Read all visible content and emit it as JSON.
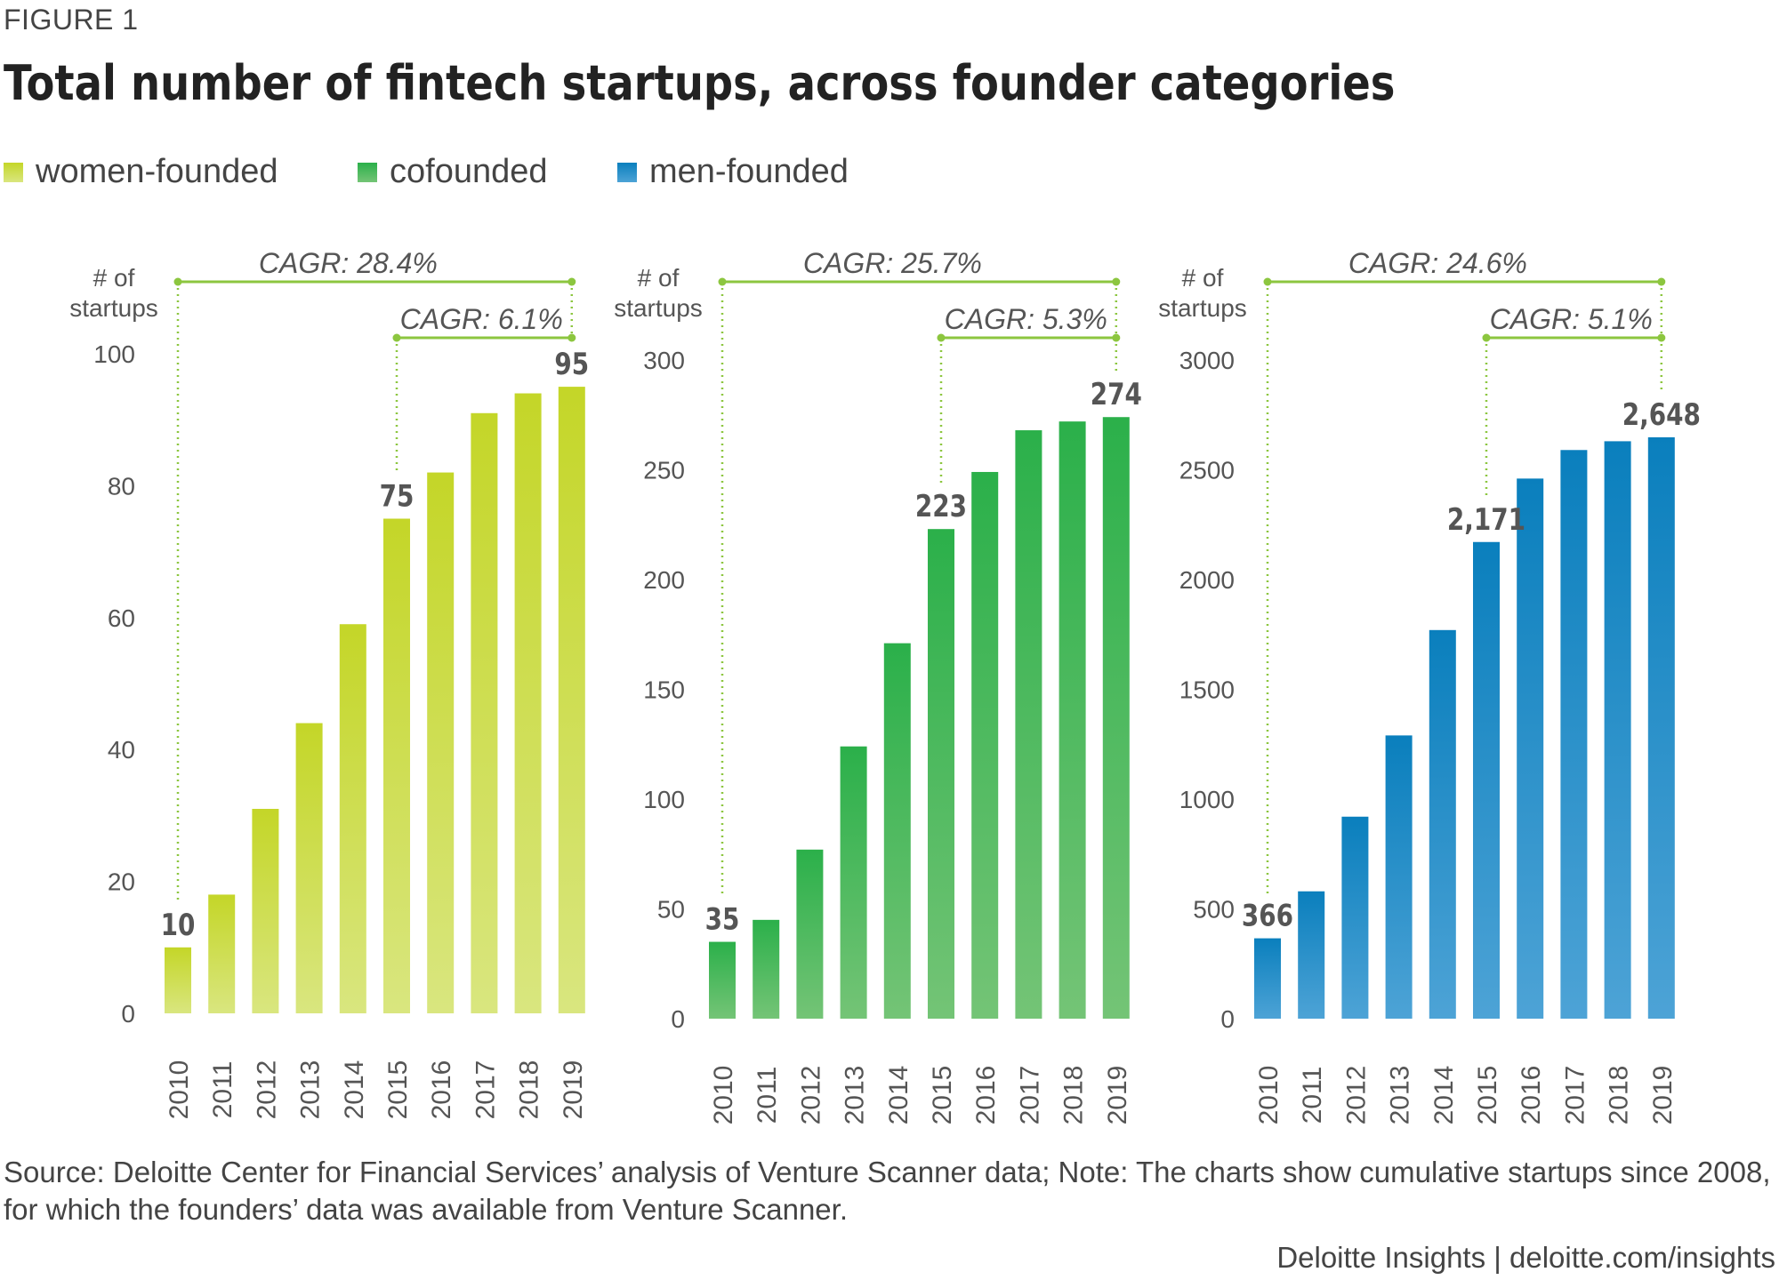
{
  "figure_label": "FIGURE 1",
  "title": "Total number of fintech startups, across founder categories",
  "legend": [
    {
      "label": "women-founded",
      "color": "#c9d82b"
    },
    {
      "label": "cofounded",
      "color": "#3cb44b"
    },
    {
      "label": "men-founded",
      "color": "#0a87c2"
    }
  ],
  "chart_data": [
    {
      "type": "bar",
      "series_name": "women-founded",
      "ylabel": "# of startups",
      "ylabel_lines": [
        "# of",
        "startups"
      ],
      "categories": [
        "2010",
        "2011",
        "2012",
        "2013",
        "2014",
        "2015",
        "2016",
        "2017",
        "2018",
        "2019"
      ],
      "values": [
        10,
        18,
        31,
        44,
        59,
        75,
        82,
        91,
        94,
        95
      ],
      "ylim": [
        0,
        100
      ],
      "yticks": [
        0,
        20,
        40,
        60,
        80,
        100
      ],
      "ytick_labels": [
        "0",
        "20",
        "40",
        "60",
        "80",
        "100"
      ],
      "color_top": "#c4d628",
      "color_bottom": "#d9e67f",
      "labeled_bars": [
        {
          "category": "2010",
          "label": "10"
        },
        {
          "category": "2015",
          "label": "75"
        },
        {
          "category": "2019",
          "label": "95"
        }
      ],
      "cagr": [
        {
          "label": "CAGR: 28.4%",
          "from": "2010",
          "to": "2019"
        },
        {
          "label": "CAGR: 6.1%",
          "from": "2015",
          "to": "2019"
        }
      ]
    },
    {
      "type": "bar",
      "series_name": "cofounded",
      "ylabel": "# of startups",
      "ylabel_lines": [
        "# of",
        "startups"
      ],
      "categories": [
        "2010",
        "2011",
        "2012",
        "2013",
        "2014",
        "2015",
        "2016",
        "2017",
        "2018",
        "2019"
      ],
      "values": [
        35,
        45,
        77,
        124,
        171,
        223,
        249,
        268,
        272,
        274
      ],
      "ylim": [
        0,
        300
      ],
      "yticks": [
        0,
        50,
        100,
        150,
        200,
        250,
        300
      ],
      "ytick_labels": [
        "0",
        "50",
        "100",
        "150",
        "200",
        "250",
        "300"
      ],
      "color_top": "#2bb04a",
      "color_bottom": "#74c476",
      "labeled_bars": [
        {
          "category": "2010",
          "label": "35"
        },
        {
          "category": "2015",
          "label": "223"
        },
        {
          "category": "2019",
          "label": "274"
        }
      ],
      "cagr": [
        {
          "label": "CAGR: 25.7%",
          "from": "2010",
          "to": "2019"
        },
        {
          "label": "CAGR: 5.3%",
          "from": "2015",
          "to": "2019"
        }
      ]
    },
    {
      "type": "bar",
      "series_name": "men-founded",
      "ylabel": "# of startups",
      "ylabel_lines": [
        "# of",
        "startups"
      ],
      "categories": [
        "2010",
        "2011",
        "2012",
        "2013",
        "2014",
        "2015",
        "2016",
        "2017",
        "2018",
        "2019"
      ],
      "values": [
        366,
        580,
        920,
        1290,
        1770,
        2171,
        2460,
        2590,
        2630,
        2648
      ],
      "ylim": [
        0,
        3000
      ],
      "yticks": [
        0,
        500,
        1000,
        1500,
        2000,
        2500,
        3000
      ],
      "ytick_labels": [
        "0",
        "500",
        "1000",
        "1500",
        "2000",
        "2500",
        "3000"
      ],
      "color_top": "#0a7fbd",
      "color_bottom": "#4da3d6",
      "labeled_bars": [
        {
          "category": "2010",
          "label": "366"
        },
        {
          "category": "2015",
          "label": "2,171"
        },
        {
          "category": "2019",
          "label": "2,648"
        }
      ],
      "cagr": [
        {
          "label": "CAGR: 24.6%",
          "from": "2010",
          "to": "2019"
        },
        {
          "label": "CAGR: 5.1%",
          "from": "2015",
          "to": "2019"
        }
      ]
    }
  ],
  "cagr_line_color": "#8cc63f",
  "source_note": "Source: Deloitte Center for Financial Services’ analysis of Venture Scanner data; Note: The charts show cumulative startups since 2008, for which the founders’ data was available from Venture Scanner.",
  "brand": "Deloitte Insights | deloitte.com/insights"
}
